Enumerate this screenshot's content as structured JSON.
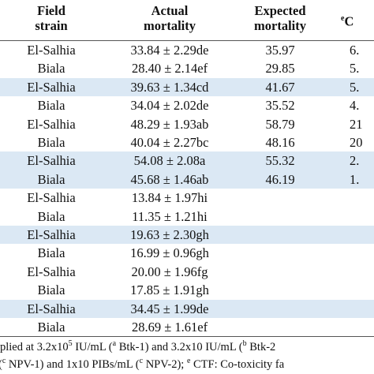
{
  "table": {
    "header": [
      [
        "Field",
        "strain"
      ],
      [
        "Actual",
        "mortality"
      ],
      [
        "Expected",
        "mortality"
      ],
      [
        "e",
        "C"
      ]
    ],
    "rows": [
      {
        "cells": [
          "El-Salhia",
          "33.84 ± 2.29de",
          "35.97",
          "6."
        ],
        "shaded": false
      },
      {
        "cells": [
          "Biala",
          "28.40 ± 2.14ef",
          "29.85",
          "5."
        ],
        "shaded": false
      },
      {
        "cells": [
          "El-Salhia",
          "39.63 ± 1.34cd",
          "41.67",
          "5."
        ],
        "shaded": true
      },
      {
        "cells": [
          "Biala",
          "34.04 ± 2.02de",
          "35.52",
          "4."
        ],
        "shaded": false
      },
      {
        "cells": [
          "El-Salhia",
          "48.29 ± 1.93ab",
          "58.79",
          "21"
        ],
        "shaded": false
      },
      {
        "cells": [
          "Biala",
          "40.04 ± 2.27bc",
          "48.16",
          "20"
        ],
        "shaded": false
      },
      {
        "cells": [
          "El-Salhia",
          "54.08 ± 2.08a",
          "55.32",
          "2."
        ],
        "shaded": true
      },
      {
        "cells": [
          "Biala",
          "45.68 ± 1.46ab",
          "46.19",
          "1."
        ],
        "shaded": true
      },
      {
        "cells": [
          "El-Salhia",
          "13.84 ± 1.97hi",
          null,
          null
        ],
        "shaded": false
      },
      {
        "cells": [
          "Biala",
          "11.35 ± 1.21hi",
          null,
          null
        ],
        "shaded": false
      },
      {
        "cells": [
          "El-Salhia",
          "19.63 ± 2.30gh",
          null,
          null
        ],
        "shaded": true
      },
      {
        "cells": [
          "Biala",
          "16.99 ± 0.96gh",
          null,
          null
        ],
        "shaded": false
      },
      {
        "cells": [
          "El-Salhia",
          "20.00 ± 1.96fg",
          null,
          null
        ],
        "shaded": false
      },
      {
        "cells": [
          "Biala",
          "17.85 ± 1.91gh",
          null,
          null
        ],
        "shaded": false
      },
      {
        "cells": [
          "El-Salhia",
          "34.45 ± 1.99de",
          null,
          null
        ],
        "shaded": true
      },
      {
        "cells": [
          "Biala",
          "28.69 ± 1.61ef",
          null,
          null
        ],
        "shaded": false
      }
    ]
  },
  "footnote": {
    "line1": [
      "plied at 3.2x10",
      "5",
      " IU/mL (",
      "a",
      " Btk-1) and 3.2x10 IU/mL (",
      "b",
      " Btk-2"
    ],
    "line2": [
      "(",
      "c",
      " NPV-1) and 1x10 PIBs/mL (",
      "c",
      " NPV-2); ",
      "e",
      " CTF: Co-toxicity fa"
    ]
  }
}
